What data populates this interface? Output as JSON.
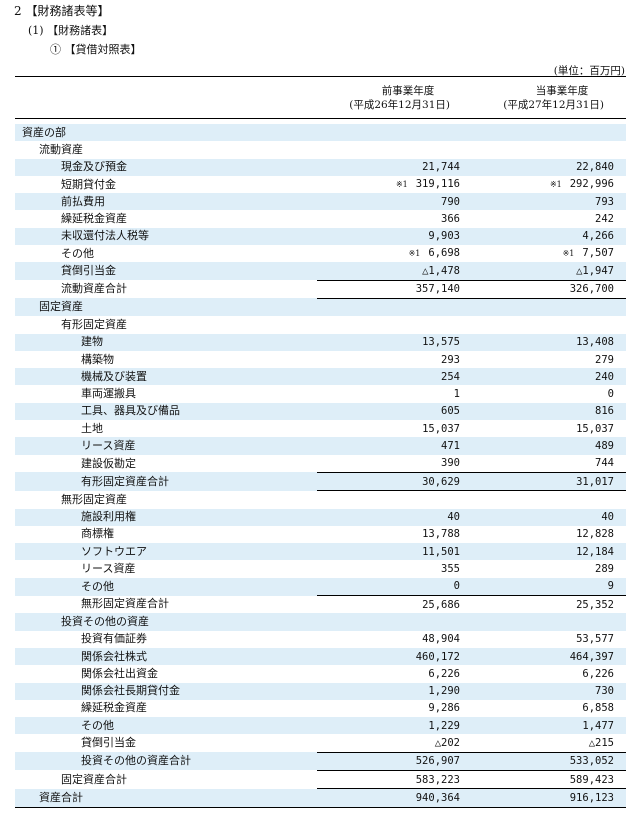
{
  "headings": {
    "section": "2 【財務諸表等】",
    "sub": "(1) 【財務諸表】",
    "item": "① 【貸借対照表】"
  },
  "unit": "(単位：百万円)",
  "columns": {
    "prev_line1": "前事業年度",
    "prev_line2": "(平成26年12月31日)",
    "curr_line1": "当事業年度",
    "curr_line2": "(平成27年12月31日)"
  },
  "rows": [
    {
      "label": "資産の部",
      "indent": 0,
      "prev": "",
      "curr": "",
      "style": ""
    },
    {
      "label": "流動資産",
      "indent": 1,
      "prev": "",
      "curr": "",
      "style": ""
    },
    {
      "label": "現金及び預金",
      "indent": 2,
      "prev": "21,744",
      "curr": "22,840",
      "style": ""
    },
    {
      "label": "短期貸付金",
      "indent": 2,
      "prev": "319,116",
      "curr": "292,996",
      "prev_note": "※1",
      "curr_note": "※1",
      "style": ""
    },
    {
      "label": "前払費用",
      "indent": 2,
      "prev": "790",
      "curr": "793",
      "style": ""
    },
    {
      "label": "繰延税金資産",
      "indent": 2,
      "prev": "366",
      "curr": "242",
      "style": ""
    },
    {
      "label": "未収還付法人税等",
      "indent": 2,
      "prev": "9,903",
      "curr": "4,266",
      "style": ""
    },
    {
      "label": "その他",
      "indent": 2,
      "prev": "6,698",
      "curr": "7,507",
      "prev_note": "※1",
      "curr_note": "※1",
      "style": ""
    },
    {
      "label": "貸倒引当金",
      "indent": 2,
      "prev": "△1,478",
      "curr": "△1,947",
      "style": "uline"
    },
    {
      "label": "流動資産合計",
      "indent": 2,
      "prev": "357,140",
      "curr": "326,700",
      "style": "total"
    },
    {
      "label": "固定資産",
      "indent": 1,
      "prev": "",
      "curr": "",
      "style": ""
    },
    {
      "label": "有形固定資産",
      "indent": 2,
      "prev": "",
      "curr": "",
      "style": ""
    },
    {
      "label": "建物",
      "indent": 3,
      "prev": "13,575",
      "curr": "13,408",
      "style": ""
    },
    {
      "label": "構築物",
      "indent": 3,
      "prev": "293",
      "curr": "279",
      "style": ""
    },
    {
      "label": "機械及び装置",
      "indent": 3,
      "prev": "254",
      "curr": "240",
      "style": ""
    },
    {
      "label": "車両運搬具",
      "indent": 3,
      "prev": "1",
      "curr": "0",
      "style": ""
    },
    {
      "label": "工具、器具及び備品",
      "indent": 3,
      "prev": "605",
      "curr": "816",
      "style": ""
    },
    {
      "label": "土地",
      "indent": 3,
      "prev": "15,037",
      "curr": "15,037",
      "style": ""
    },
    {
      "label": "リース資産",
      "indent": 3,
      "prev": "471",
      "curr": "489",
      "style": ""
    },
    {
      "label": "建設仮勘定",
      "indent": 3,
      "prev": "390",
      "curr": "744",
      "style": "uline"
    },
    {
      "label": "有形固定資産合計",
      "indent": 3,
      "prev": "30,629",
      "curr": "31,017",
      "style": "dline"
    },
    {
      "label": "無形固定資産",
      "indent": 2,
      "prev": "",
      "curr": "",
      "style": ""
    },
    {
      "label": "施設利用権",
      "indent": 3,
      "prev": "40",
      "curr": "40",
      "style": ""
    },
    {
      "label": "商標権",
      "indent": 3,
      "prev": "13,788",
      "curr": "12,828",
      "style": ""
    },
    {
      "label": "ソフトウエア",
      "indent": 3,
      "prev": "11,501",
      "curr": "12,184",
      "style": ""
    },
    {
      "label": "リース資産",
      "indent": 3,
      "prev": "355",
      "curr": "289",
      "style": ""
    },
    {
      "label": "その他",
      "indent": 3,
      "prev": "0",
      "curr": "9",
      "style": "uline"
    },
    {
      "label": "無形固定資産合計",
      "indent": 3,
      "prev": "25,686",
      "curr": "25,352",
      "style": ""
    },
    {
      "label": "投資その他の資産",
      "indent": 2,
      "prev": "",
      "curr": "",
      "style": ""
    },
    {
      "label": "投資有価証券",
      "indent": 3,
      "prev": "48,904",
      "curr": "53,577",
      "style": ""
    },
    {
      "label": "関係会社株式",
      "indent": 3,
      "prev": "460,172",
      "curr": "464,397",
      "style": ""
    },
    {
      "label": "関係会社出資金",
      "indent": 3,
      "prev": "6,226",
      "curr": "6,226",
      "style": ""
    },
    {
      "label": "関係会社長期貸付金",
      "indent": 3,
      "prev": "1,290",
      "curr": "730",
      "style": ""
    },
    {
      "label": "繰延税金資産",
      "indent": 3,
      "prev": "9,286",
      "curr": "6,858",
      "style": ""
    },
    {
      "label": "その他",
      "indent": 3,
      "prev": "1,229",
      "curr": "1,477",
      "style": ""
    },
    {
      "label": "貸倒引当金",
      "indent": 3,
      "prev": "△202",
      "curr": "△215",
      "style": "uline"
    },
    {
      "label": "投資その他の資産合計",
      "indent": 3,
      "prev": "526,907",
      "curr": "533,052",
      "style": "uline"
    },
    {
      "label": "固定資産合計",
      "indent": 2,
      "prev": "583,223",
      "curr": "589,423",
      "style": "uline"
    },
    {
      "label": "資産合計",
      "indent": 1,
      "prev": "940,364",
      "curr": "916,123",
      "style": "grand"
    }
  ]
}
